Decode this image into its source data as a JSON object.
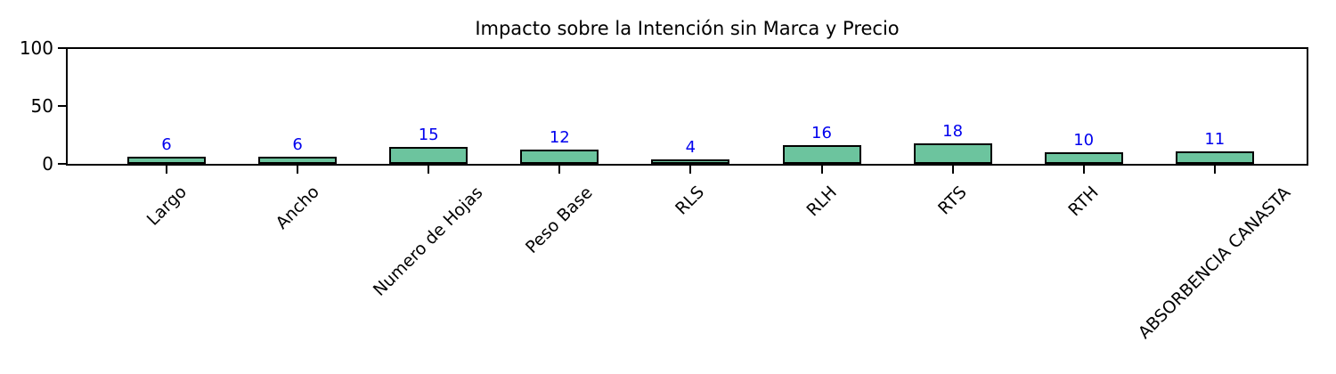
{
  "figure": {
    "background_color": "#ffffff"
  },
  "chart_data": {
    "type": "bar",
    "title": "Impacto sobre la Intención sin Marca y Precio",
    "categories": [
      "Largo",
      "Ancho",
      "Numero de Hojas",
      "Peso Base",
      "RLS",
      "RLH",
      "RTS",
      "RTH",
      "ABSORBENCIA CANASTA"
    ],
    "values": [
      6,
      6,
      15,
      12,
      4,
      16,
      18,
      10,
      11
    ],
    "value_labels": [
      "6",
      "6",
      "15",
      "12",
      "4",
      "16",
      "18",
      "10",
      "11"
    ],
    "xlabel": "",
    "ylabel": "",
    "yticks": [
      0,
      50,
      100
    ],
    "ytick_labels": [
      "0",
      "50",
      "100"
    ],
    "ylim": [
      0,
      100
    ],
    "grid": false,
    "legend_position": "none",
    "x_tick_rotation_deg": 45,
    "bar_fill_color": "#6cc49e",
    "bar_edge_color": "#000000",
    "value_label_color": "#0000ee",
    "axis_color": "#000000",
    "title_color": "#000000"
  }
}
